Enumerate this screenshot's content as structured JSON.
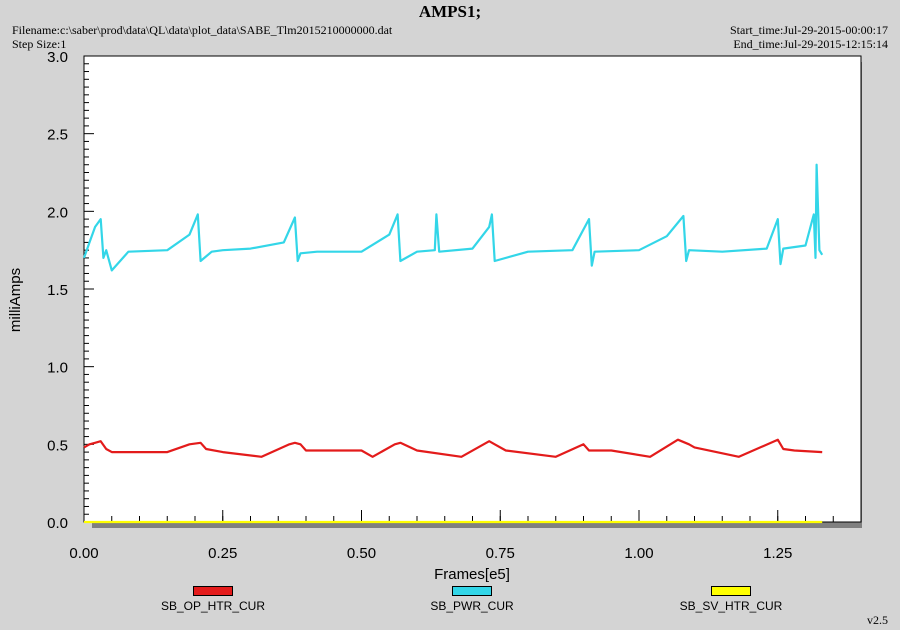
{
  "header": {
    "title": "AMPS1;",
    "filename": "Filename:c:\\saber\\prod\\data\\QL\\data\\plot_data\\SABE_Tlm2015210000000.dat",
    "step_size": "Step Size:1",
    "start_time": "Start_time:Jul-29-2015-00:00:17",
    "end_time": "End_time:Jul-29-2015-12:15:14"
  },
  "footer": {
    "version": "v2.5"
  },
  "chart_data": {
    "type": "line",
    "title": "AMPS1;",
    "xlabel": "Frames[e5]",
    "ylabel": "milliAmps",
    "xlim": [
      0,
      1.4
    ],
    "ylim": [
      0,
      3.0
    ],
    "x_ticks": [
      "0.00",
      "0.25",
      "0.50",
      "0.75",
      "1.00",
      "1.25"
    ],
    "y_ticks": [
      "0.0",
      "0.5",
      "1.0",
      "1.5",
      "2.0",
      "2.5",
      "3.0"
    ],
    "grid": false,
    "legend_position": "bottom",
    "series": [
      {
        "name": "SB_OP_HTR_CUR",
        "color": "#e31b1b",
        "x": [
          0.0,
          0.01,
          0.02,
          0.03,
          0.04,
          0.05,
          0.1,
          0.15,
          0.19,
          0.21,
          0.22,
          0.25,
          0.32,
          0.37,
          0.38,
          0.39,
          0.4,
          0.5,
          0.52,
          0.56,
          0.57,
          0.6,
          0.68,
          0.73,
          0.74,
          0.76,
          0.85,
          0.9,
          0.91,
          0.95,
          1.02,
          1.07,
          1.09,
          1.1,
          1.18,
          1.25,
          1.26,
          1.28,
          1.33
        ],
        "y": [
          0.48,
          0.5,
          0.51,
          0.52,
          0.47,
          0.45,
          0.45,
          0.45,
          0.5,
          0.51,
          0.47,
          0.45,
          0.42,
          0.5,
          0.51,
          0.5,
          0.46,
          0.46,
          0.42,
          0.5,
          0.51,
          0.46,
          0.42,
          0.52,
          0.5,
          0.46,
          0.42,
          0.5,
          0.46,
          0.46,
          0.42,
          0.53,
          0.5,
          0.48,
          0.42,
          0.53,
          0.47,
          0.46,
          0.45
        ]
      },
      {
        "name": "SB_PWR_CUR",
        "color": "#33d6e8",
        "x": [
          0.0,
          0.01,
          0.02,
          0.03,
          0.035,
          0.04,
          0.05,
          0.08,
          0.15,
          0.19,
          0.205,
          0.21,
          0.23,
          0.25,
          0.3,
          0.36,
          0.38,
          0.385,
          0.39,
          0.42,
          0.5,
          0.55,
          0.565,
          0.57,
          0.6,
          0.632,
          0.635,
          0.64,
          0.7,
          0.73,
          0.735,
          0.74,
          0.8,
          0.88,
          0.91,
          0.915,
          0.92,
          1.0,
          1.05,
          1.08,
          1.085,
          1.09,
          1.15,
          1.23,
          1.25,
          1.255,
          1.26,
          1.3,
          1.315,
          1.318,
          1.32,
          1.325,
          1.33
        ],
        "y": [
          1.7,
          1.8,
          1.9,
          1.95,
          1.7,
          1.75,
          1.62,
          1.74,
          1.75,
          1.85,
          1.98,
          1.68,
          1.74,
          1.75,
          1.76,
          1.8,
          1.96,
          1.68,
          1.73,
          1.74,
          1.74,
          1.85,
          1.98,
          1.68,
          1.74,
          1.75,
          1.98,
          1.74,
          1.76,
          1.9,
          1.98,
          1.68,
          1.74,
          1.75,
          1.95,
          1.65,
          1.74,
          1.75,
          1.84,
          1.97,
          1.68,
          1.75,
          1.74,
          1.76,
          1.95,
          1.66,
          1.76,
          1.78,
          1.98,
          1.7,
          2.3,
          1.75,
          1.72
        ]
      },
      {
        "name": "SB_SV_HTR_CUR",
        "color": "#ffff00",
        "x": [
          0.0,
          1.33
        ],
        "y": [
          0.0,
          0.0
        ]
      }
    ]
  }
}
